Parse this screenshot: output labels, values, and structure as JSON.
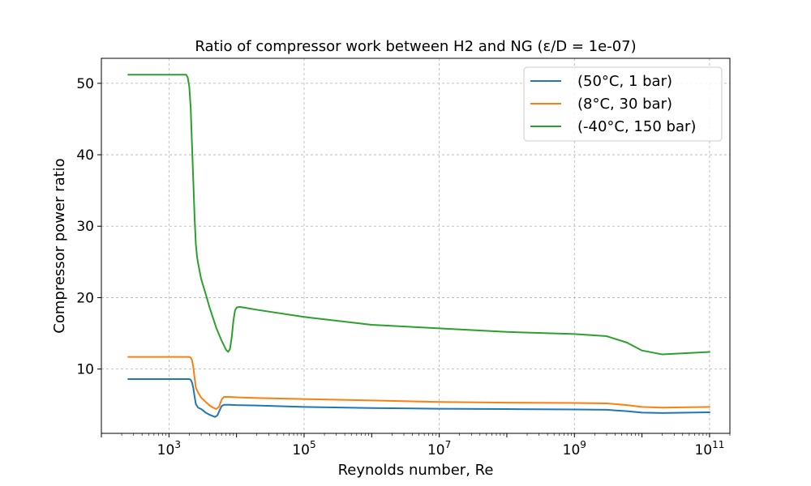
{
  "chart_data": {
    "type": "line",
    "title": "Ratio of compressor work between H2 and NG (ε/D = 1e-07)",
    "xlabel": "Reynolds number, Re",
    "ylabel": "Compressor power ratio",
    "xscale": "log",
    "xlim": [
      100,
      200000000000
    ],
    "ylim": [
      1,
      53.5
    ],
    "xticks": [
      {
        "value": 1000,
        "base": "10",
        "exp": "3"
      },
      {
        "value": 100000,
        "base": "10",
        "exp": "5"
      },
      {
        "value": 10000000,
        "base": "10",
        "exp": "7"
      },
      {
        "value": 1000000000,
        "base": "10",
        "exp": "9"
      },
      {
        "value": 100000000000,
        "base": "10",
        "exp": "11"
      }
    ],
    "yticks": [
      10,
      20,
      30,
      40,
      50
    ],
    "grid": true,
    "legend_position": "upper right",
    "series": [
      {
        "name": "(50°C, 1 bar)",
        "color": "#1f77b4",
        "x": [
          250,
          1000,
          1800,
          2000,
          2100,
          2200,
          2300,
          2400,
          2500,
          2700,
          3000,
          3500,
          4000,
          4500,
          4800,
          5200,
          5600,
          6000,
          6500,
          7000,
          8000,
          10000,
          20000,
          100000,
          1000000,
          10000000,
          100000000,
          1000000000,
          3000000000,
          6000000000,
          10000000000,
          20000000000,
          100000000000
        ],
        "y": [
          8.6,
          8.6,
          8.6,
          8.6,
          8.5,
          8.1,
          7.3,
          6.1,
          5.1,
          4.6,
          4.4,
          3.9,
          3.6,
          3.4,
          3.3,
          3.5,
          4.2,
          4.8,
          5.0,
          5.0,
          5.0,
          4.95,
          4.9,
          4.7,
          4.55,
          4.45,
          4.4,
          4.35,
          4.3,
          4.1,
          3.9,
          3.85,
          3.95
        ]
      },
      {
        "name": "(8°C, 30 bar)",
        "color": "#ff7f0e",
        "x": [
          250,
          1000,
          1800,
          2000,
          2100,
          2200,
          2300,
          2400,
          2500,
          2700,
          3000,
          3500,
          4000,
          4500,
          5000,
          5500,
          6000,
          6500,
          7000,
          8000,
          10000,
          20000,
          100000,
          1000000,
          10000000,
          100000000,
          1000000000,
          3000000000,
          6000000000,
          10000000000,
          20000000000,
          100000000000
        ],
        "y": [
          11.7,
          11.7,
          11.7,
          11.7,
          11.6,
          11.2,
          10.2,
          8.7,
          7.4,
          6.7,
          6.0,
          5.4,
          4.9,
          4.6,
          4.4,
          4.7,
          5.7,
          6.1,
          6.1,
          6.1,
          6.05,
          5.95,
          5.8,
          5.6,
          5.4,
          5.3,
          5.25,
          5.2,
          4.95,
          4.7,
          4.6,
          4.7
        ]
      },
      {
        "name": "(-40°C, 150 bar)",
        "color": "#2ca02c",
        "x": [
          250,
          1000,
          1800,
          1900,
          2000,
          2100,
          2200,
          2300,
          2400,
          2500,
          2600,
          2700,
          3000,
          3500,
          4000,
          5000,
          6000,
          7000,
          7500,
          8000,
          8500,
          9000,
          9500,
          10000,
          11000,
          13000,
          20000,
          100000,
          1000000,
          10000000,
          100000000,
          1000000000,
          3000000000,
          6000000000,
          10000000000,
          20000000000,
          100000000000
        ],
        "y": [
          51.2,
          51.2,
          51.2,
          50.8,
          49.5,
          46.5,
          41.0,
          36.0,
          31.0,
          27.5,
          25.8,
          24.8,
          22.6,
          20.5,
          18.6,
          15.8,
          14.0,
          12.7,
          12.4,
          12.8,
          14.5,
          16.8,
          18.2,
          18.6,
          18.7,
          18.6,
          18.3,
          17.3,
          16.2,
          15.7,
          15.2,
          14.9,
          14.6,
          13.7,
          12.6,
          12.05,
          12.4
        ]
      }
    ]
  }
}
